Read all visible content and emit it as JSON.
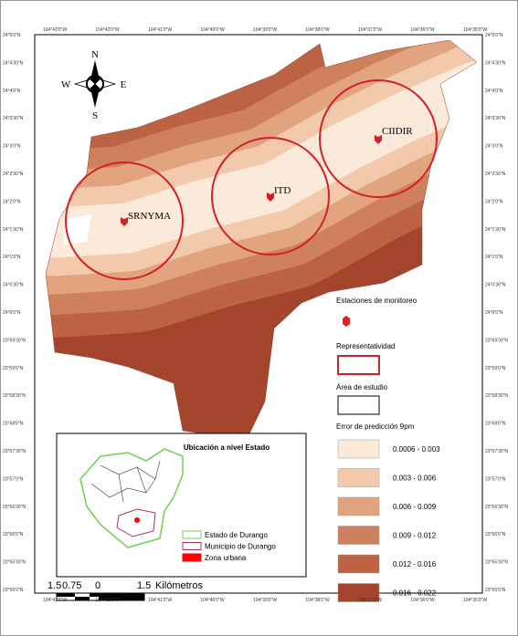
{
  "compass": {
    "n": "N",
    "s": "S",
    "e": "E",
    "w": "W"
  },
  "top_coords": [
    "104°43'0\"W",
    "104°42'0\"W",
    "104°41'0\"W",
    "104°40'0\"W",
    "104°39'0\"W",
    "104°38'0\"W",
    "104°37'0\"W",
    "104°36'0\"W",
    "104°35'0\"W"
  ],
  "left_coords": [
    "24°5'0\"N",
    "24°4'30\"N",
    "24°4'0\"N",
    "24°3'30\"N",
    "24°3'0\"N",
    "24°2'30\"N",
    "24°2'0\"N",
    "24°1'30\"N",
    "24°1'0\"N",
    "24°0'30\"N",
    "24°0'0\"N",
    "23°59'30\"N",
    "23°59'0\"N",
    "23°58'30\"N",
    "23°58'0\"N",
    "23°57'30\"N",
    "23°57'0\"N",
    "23°56'30\"N",
    "23°56'0\"N",
    "23°55'30\"N",
    "23°55'0\"N"
  ],
  "stations": [
    {
      "label": "SRNYMA"
    },
    {
      "label": "ITD"
    },
    {
      "label": "CIIDIR"
    }
  ],
  "legend": {
    "stations_title": "Estaciones de monitoreo",
    "representativity_title": "Representatividad",
    "study_area_title": "Área de estudio",
    "error_title": "Error de predicción 9pm",
    "classes": [
      {
        "label": "0.0006 - 0.003",
        "color": "#fbe9d9"
      },
      {
        "label": "0.003 - 0.006",
        "color": "#f2c9aa"
      },
      {
        "label": "0.006 - 0.009",
        "color": "#e2a37f"
      },
      {
        "label": "0.009 - 0.012",
        "color": "#cf805c"
      },
      {
        "label": "0.012 - 0.016",
        "color": "#bc6343"
      },
      {
        "label": "0.016 - 0.022",
        "color": "#a3452c"
      }
    ]
  },
  "inset": {
    "title": "Ubicación a nivel Estado",
    "items": [
      {
        "label": "Estado de Durango",
        "color": "#6fcf4f"
      },
      {
        "label": "Municipio de Durango",
        "color": "#a0306a"
      },
      {
        "label": "Zona urbana",
        "color": "#ff0000"
      }
    ]
  },
  "scale": {
    "ticks": [
      "1.5",
      "0.75",
      "0",
      "1.5"
    ],
    "unit": "Kilómetros"
  }
}
